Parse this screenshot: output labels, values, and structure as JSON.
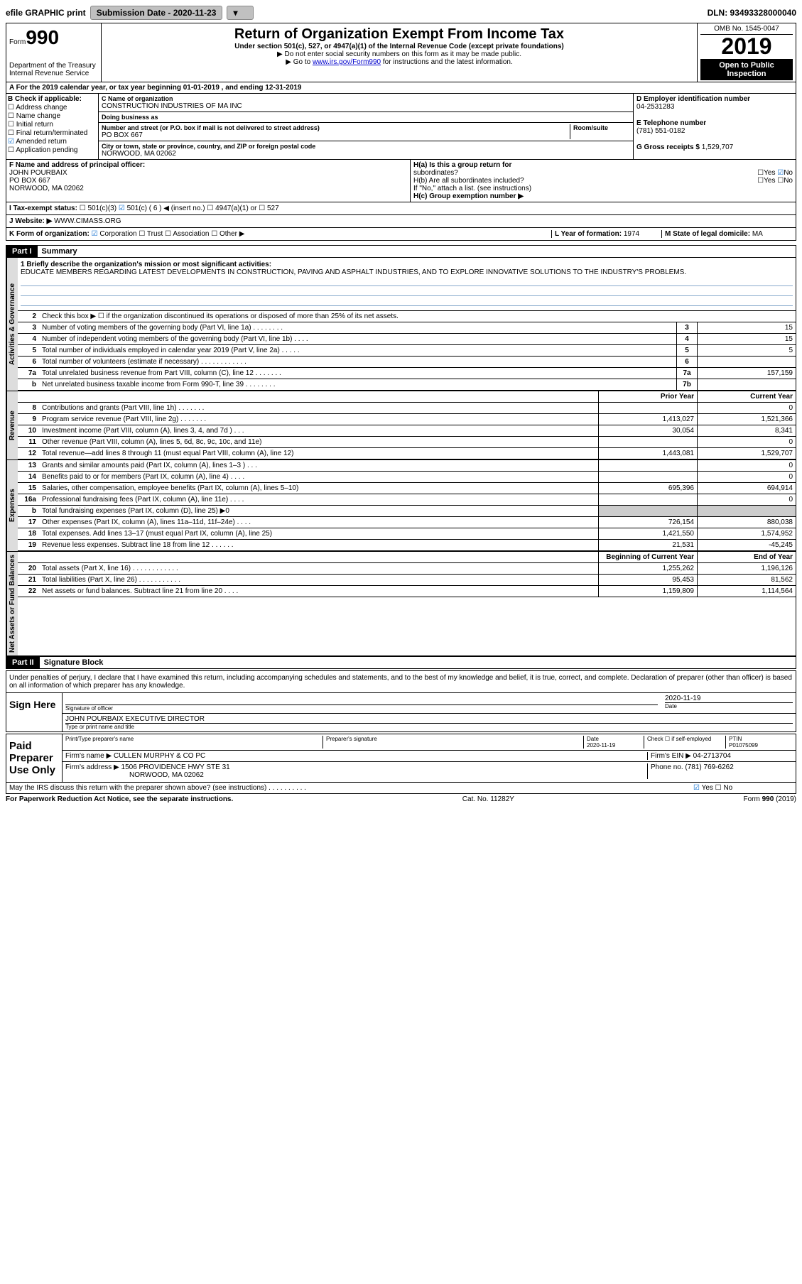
{
  "topbar": {
    "efile": "efile GRAPHIC print",
    "submission_label": "Submission Date - 2020-11-23",
    "dln": "DLN: 93493328000040"
  },
  "header": {
    "form_word": "Form",
    "form_no": "990",
    "dept": "Department of the Treasury",
    "irs": "Internal Revenue Service",
    "title": "Return of Organization Exempt From Income Tax",
    "sub1": "Under section 501(c), 527, or 4947(a)(1) of the Internal Revenue Code (except private foundations)",
    "sub2": "▶ Do not enter social security numbers on this form as it may be made public.",
    "sub3_prefix": "▶ Go to ",
    "sub3_link": "www.irs.gov/Form990",
    "sub3_suffix": " for instructions and the latest information.",
    "omb": "OMB No. 1545-0047",
    "year": "2019",
    "inspect": "Open to Public Inspection"
  },
  "period": {
    "text": "A For the 2019 calendar year, or tax year beginning 01-01-2019    , and ending 12-31-2019"
  },
  "checkboxes": {
    "heading": "B Check if applicable:",
    "items": [
      "Address change",
      "Name change",
      "Initial return",
      "Final return/terminated",
      "Amended return",
      "Application pending"
    ],
    "checked_index": 4
  },
  "entity": {
    "name_lbl": "C Name of organization",
    "name": "CONSTRUCTION INDUSTRIES OF MA INC",
    "dba_lbl": "Doing business as",
    "dba": "",
    "addr_lbl": "Number and street (or P.O. box if mail is not delivered to street address)",
    "room_lbl": "Room/suite",
    "addr": "PO BOX 667",
    "city_lbl": "City or town, state or province, country, and ZIP or foreign postal code",
    "city": "NORWOOD, MA  02062",
    "ein_lbl": "D Employer identification number",
    "ein": "04-2531283",
    "phone_lbl": "E Telephone number",
    "phone": "(781) 551-0182",
    "gross_lbl": "G Gross receipts $",
    "gross": "1,529,707"
  },
  "officer": {
    "lbl": "F Name and address of principal officer:",
    "name": "JOHN POURBAIX",
    "addr1": "PO BOX 667",
    "addr2": "NORWOOD, MA  02062",
    "ha_lbl": "H(a)  Is this a group return for",
    "ha_sub": "subordinates?",
    "hb_lbl": "H(b)  Are all subordinates included?",
    "hb_note": "If \"No,\" attach a list. (see instructions)",
    "hc_lbl": "H(c)  Group exemption number ▶",
    "yes": "Yes",
    "no": "No"
  },
  "status": {
    "lbl": "I  Tax-exempt status:",
    "opt1": "501(c)(3)",
    "opt2": "501(c) ( 6 ) ◀ (insert no.)",
    "opt3": "4947(a)(1) or",
    "opt4": "527"
  },
  "website": {
    "lbl": "J Website: ▶",
    "val": "WWW.CIMASS.ORG"
  },
  "formorg": {
    "lbl": "K Form of organization:",
    "opts": [
      "Corporation",
      "Trust",
      "Association",
      "Other ▶"
    ],
    "year_lbl": "L Year of formation:",
    "year": "1974",
    "state_lbl": "M State of legal domicile:",
    "state": "MA"
  },
  "part1": {
    "header": "Part I",
    "title": "Summary",
    "line1_lbl": "1  Briefly describe the organization's mission or most significant activities:",
    "mission": "EDUCATE MEMBERS REGARDING LATEST DEVELOPMENTS IN CONSTRUCTION, PAVING AND ASPHALT INDUSTRIES, AND TO EXPLORE INNOVATIVE SOLUTIONS TO THE INDUSTRY'S PROBLEMS.",
    "line2": "Check this box ▶ ☐  if the organization discontinued its operations or disposed of more than 25% of its net assets.",
    "vtab_gov": "Activities & Governance",
    "vtab_rev": "Revenue",
    "vtab_exp": "Expenses",
    "vtab_net": "Net Assets or Fund Balances",
    "gov_lines": [
      {
        "n": "3",
        "d": "Number of voting members of the governing body (Part VI, line 1a)  .   .   .   .   .   .   .   .",
        "box": "3",
        "v": "15"
      },
      {
        "n": "4",
        "d": "Number of independent voting members of the governing body (Part VI, line 1b)  .   .   .   .",
        "box": "4",
        "v": "15"
      },
      {
        "n": "5",
        "d": "Total number of individuals employed in calendar year 2019 (Part V, line 2a)  .   .   .   .   .",
        "box": "5",
        "v": "5"
      },
      {
        "n": "6",
        "d": "Total number of volunteers (estimate if necessary)   .   .   .   .   .   .   .   .   .   .   .   .",
        "box": "6",
        "v": ""
      },
      {
        "n": "7a",
        "d": "Total unrelated business revenue from Part VIII, column (C), line 12  .   .   .   .   .   .   .",
        "box": "7a",
        "v": "157,159"
      },
      {
        "n": "b",
        "d": "Net unrelated business taxable income from Form 990-T, line 39   .   .   .   .   .   .   .   .",
        "box": "7b",
        "v": ""
      }
    ],
    "col_prior": "Prior Year",
    "col_current": "Current Year",
    "rev_lines": [
      {
        "n": "8",
        "d": "Contributions and grants (Part VIII, line 1h)   .   .   .   .   .   .   .",
        "p": "",
        "c": "0"
      },
      {
        "n": "9",
        "d": "Program service revenue (Part VIII, line 2g)   .   .   .   .   .   .   .",
        "p": "1,413,027",
        "c": "1,521,366"
      },
      {
        "n": "10",
        "d": "Investment income (Part VIII, column (A), lines 3, 4, and 7d )   .   .   .",
        "p": "30,054",
        "c": "8,341"
      },
      {
        "n": "11",
        "d": "Other revenue (Part VIII, column (A), lines 5, 6d, 8c, 9c, 10c, and 11e)",
        "p": "",
        "c": "0"
      },
      {
        "n": "12",
        "d": "Total revenue—add lines 8 through 11 (must equal Part VIII, column (A), line 12)",
        "p": "1,443,081",
        "c": "1,529,707"
      }
    ],
    "exp_lines": [
      {
        "n": "13",
        "d": "Grants and similar amounts paid (Part IX, column (A), lines 1–3 )  .   .   .",
        "p": "",
        "c": "0"
      },
      {
        "n": "14",
        "d": "Benefits paid to or for members (Part IX, column (A), line 4)  .   .   .   .",
        "p": "",
        "c": "0"
      },
      {
        "n": "15",
        "d": "Salaries, other compensation, employee benefits (Part IX, column (A), lines 5–10)",
        "p": "695,396",
        "c": "694,914"
      },
      {
        "n": "16a",
        "d": "Professional fundraising fees (Part IX, column (A), line 11e)  .   .   .   .",
        "p": "",
        "c": "0"
      },
      {
        "n": "b",
        "d": "Total fundraising expenses (Part IX, column (D), line 25) ▶0",
        "p": "shade",
        "c": "shade"
      },
      {
        "n": "17",
        "d": "Other expenses (Part IX, column (A), lines 11a–11d, 11f–24e)  .   .   .   .",
        "p": "726,154",
        "c": "880,038"
      },
      {
        "n": "18",
        "d": "Total expenses. Add lines 13–17 (must equal Part IX, column (A), line 25)",
        "p": "1,421,550",
        "c": "1,574,952"
      },
      {
        "n": "19",
        "d": "Revenue less expenses. Subtract line 18 from line 12  .   .   .   .   .   .",
        "p": "21,531",
        "c": "-45,245"
      }
    ],
    "col_begin": "Beginning of Current Year",
    "col_end": "End of Year",
    "net_lines": [
      {
        "n": "20",
        "d": "Total assets (Part X, line 16)  .   .   .   .   .   .   .   .   .   .   .   .",
        "p": "1,255,262",
        "c": "1,196,126"
      },
      {
        "n": "21",
        "d": "Total liabilities (Part X, line 26)  .   .   .   .   .   .   .   .   .   .   .",
        "p": "95,453",
        "c": "81,562"
      },
      {
        "n": "22",
        "d": "Net assets or fund balances. Subtract line 21 from line 20   .   .   .   .",
        "p": "1,159,809",
        "c": "1,114,564"
      }
    ]
  },
  "part2": {
    "header": "Part II",
    "title": "Signature Block",
    "penalty": "Under penalties of perjury, I declare that I have examined this return, including accompanying schedules and statements, and to the best of my knowledge and belief, it is true, correct, and complete. Declaration of preparer (other than officer) is based on all information of which preparer has any knowledge.",
    "sign_here": "Sign Here",
    "sig_officer_lbl": "Signature of officer",
    "sig_date": "2020-11-19",
    "date_lbl": "Date",
    "officer_name": "JOHN POURBAIX  EXECUTIVE DIRECTOR",
    "officer_name_lbl": "Type or print name and title",
    "paid": "Paid Preparer Use Only",
    "prep_name_lbl": "Print/Type preparer's name",
    "prep_sig_lbl": "Preparer's signature",
    "prep_date_lbl": "Date",
    "prep_date": "2020-11-19",
    "self_emp": "Check ☐  if self-employed",
    "ptin_lbl": "PTIN",
    "ptin": "P01075099",
    "firm_name_lbl": "Firm's name    ▶",
    "firm_name": "CULLEN MURPHY & CO PC",
    "firm_ein_lbl": "Firm's EIN ▶",
    "firm_ein": "04-2713704",
    "firm_addr_lbl": "Firm's address ▶",
    "firm_addr1": "1506 PROVIDENCE HWY STE 31",
    "firm_addr2": "NORWOOD, MA  02062",
    "firm_phone_lbl": "Phone no.",
    "firm_phone": "(781) 769-6262",
    "discuss": "May the IRS discuss this return with the preparer shown above? (see instructions)   .   .   .   .   .   .   .   .   .   ."
  },
  "footer": {
    "paperwork": "For Paperwork Reduction Act Notice, see the separate instructions.",
    "cat": "Cat. No. 11282Y",
    "form": "Form 990 (2019)"
  }
}
